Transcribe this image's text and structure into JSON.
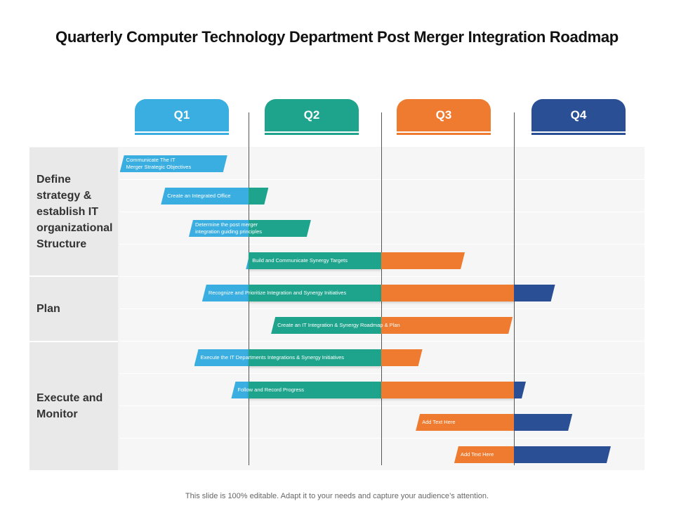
{
  "title": "Quarterly Computer Technology Department Post Merger Integration Roadmap",
  "colors": {
    "q1": "#3aaee0",
    "q2": "#1ea38c",
    "q3": "#ee7b30",
    "q4": "#2b4f94"
  },
  "quarters": [
    {
      "label": "Q1"
    },
    {
      "label": "Q2"
    },
    {
      "label": "Q3"
    },
    {
      "label": "Q4"
    }
  ],
  "groups": [
    {
      "label": "Define\nstrategy &\nestablish IT\norganizational\nStructure"
    },
    {
      "label": "Plan"
    },
    {
      "label": "Execute and\nMonitor"
    }
  ],
  "tasks": [
    {
      "label": "Communicate The IT\nMerger Strategic  Objectives",
      "start": 0.03,
      "end": 0.84
    },
    {
      "label": "Create  an Integrated  Office",
      "start": 0.34,
      "end": 1.15
    },
    {
      "label": "Determine  the post merger\nintegration  guiding principles",
      "start": 0.55,
      "end": 1.47
    },
    {
      "label": "Build and Communicate  Synergy  Targets",
      "start": 0.98,
      "end": 2.63
    },
    {
      "label": "Recognize  and Prioritize  Integration  and Synergy  Initiatives",
      "start": 0.65,
      "end": 3.31
    },
    {
      "label": "Create  an IT  Integration  &  Synergy  Roadmap  &  Plan",
      "start": 1.17,
      "end": 2.99
    },
    {
      "label": "Execute  the  IT  Departments  Integrations  &  Synergy  Initiatives",
      "start": 0.59,
      "end": 2.31
    },
    {
      "label": "Follow and Record  Progress",
      "start": 0.87,
      "end": 3.09
    },
    {
      "label": "Add Text Here",
      "start": 2.26,
      "end": 3.44
    },
    {
      "label": "Add Text Here",
      "start": 2.55,
      "end": 3.73
    }
  ],
  "footer": "This slide is 100% editable. Adapt it to your needs and capture your audience’s attention."
}
